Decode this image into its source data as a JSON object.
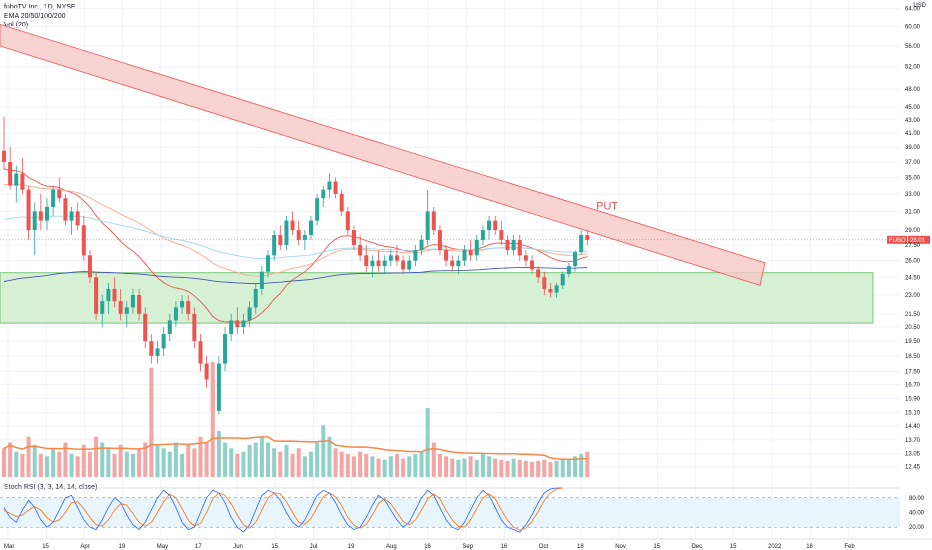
{
  "legend": {
    "symbol_line": "fuboTV Inc., 1D, NYSE",
    "ema_line": "EMA 20/50/100/200",
    "vol_line": "Vol (20)"
  },
  "currency": "USD",
  "rsi_label": "Stoch RSI (3, 3, 14, 14, close)",
  "price_tag": {
    "symbol": "FUBO",
    "value": "28.01",
    "bg": "#ef5350"
  },
  "put_label": "PUT",
  "colors": {
    "up": "#26a69a",
    "down": "#ef5350",
    "channel_fill": "#f8c8c6",
    "zone_fill": "#d6f0d4",
    "ema20": "#ef5350",
    "ema50": "#f7a98f",
    "ema100": "#9fd9e6",
    "ema200": "#4a5bb5",
    "vol_ma": "#f5894a",
    "rsi_k": "#2962ff",
    "rsi_d": "#ff6d00"
  },
  "chart_data": {
    "type": "candlestick",
    "title": "fuboTV Inc., 1D, NYSE",
    "ylabel": "USD",
    "y_scale": "log",
    "y_ticks": [
      "64.00",
      "60.00",
      "56.00",
      "52.00",
      "48.00",
      "45.00",
      "43.00",
      "41.00",
      "39.00",
      "37.00",
      "35.00",
      "33.00",
      "31.00",
      "29.00",
      "28.01",
      "27.50",
      "26.00",
      "24.50",
      "23.00",
      "21.50",
      "20.50",
      "19.50",
      "18.50",
      "17.50",
      "16.70",
      "15.90",
      "15.10",
      "14.40",
      "13.70",
      "13.05",
      "12.45"
    ],
    "x_ticks": [
      "Mar",
      "15",
      "Apr",
      "19",
      "May",
      "17",
      "Jun",
      "15",
      "Jul",
      "19",
      "Aug",
      "16",
      "Sep",
      "16",
      "Oct",
      "18",
      "Nov",
      "15",
      "Dec",
      "15",
      "2022",
      "18",
      "Feb"
    ],
    "last_price": 28.01,
    "resistance_channel": {
      "start": {
        "date": "Mar 1",
        "upper": 60.5,
        "lower": 56.0
      },
      "end": {
        "date": "Dec 15",
        "upper": 25.8,
        "lower": 23.8
      }
    },
    "support_zone": {
      "upper": 24.9,
      "lower": 20.8
    },
    "candles": [
      {
        "o": 38.5,
        "h": 43.5,
        "l": 36.0,
        "c": 37.0
      },
      {
        "o": 37.0,
        "h": 39.0,
        "l": 33.5,
        "c": 34.0
      },
      {
        "o": 34.0,
        "h": 36.5,
        "l": 32.0,
        "c": 35.5
      },
      {
        "o": 35.5,
        "h": 37.5,
        "l": 33.0,
        "c": 33.5
      },
      {
        "o": 33.5,
        "h": 34.0,
        "l": 28.0,
        "c": 29.0
      },
      {
        "o": 29.0,
        "h": 32.0,
        "l": 26.5,
        "c": 31.0
      },
      {
        "o": 31.0,
        "h": 33.0,
        "l": 29.0,
        "c": 30.0
      },
      {
        "o": 30.0,
        "h": 32.5,
        "l": 29.0,
        "c": 31.5
      },
      {
        "o": 31.5,
        "h": 34.0,
        "l": 30.5,
        "c": 33.5
      },
      {
        "o": 33.5,
        "h": 35.0,
        "l": 32.0,
        "c": 32.5
      },
      {
        "o": 32.5,
        "h": 33.0,
        "l": 29.5,
        "c": 30.0
      },
      {
        "o": 30.0,
        "h": 31.5,
        "l": 28.5,
        "c": 31.0
      },
      {
        "o": 31.0,
        "h": 32.0,
        "l": 29.0,
        "c": 29.5
      },
      {
        "o": 29.5,
        "h": 30.5,
        "l": 26.0,
        "c": 26.5
      },
      {
        "o": 26.5,
        "h": 27.0,
        "l": 24.0,
        "c": 24.5
      },
      {
        "o": 24.5,
        "h": 25.0,
        "l": 21.0,
        "c": 21.5
      },
      {
        "o": 21.5,
        "h": 23.0,
        "l": 20.5,
        "c": 22.5
      },
      {
        "o": 22.5,
        "h": 24.0,
        "l": 21.5,
        "c": 23.5
      },
      {
        "o": 23.5,
        "h": 24.5,
        "l": 22.0,
        "c": 22.5
      },
      {
        "o": 22.5,
        "h": 23.5,
        "l": 21.0,
        "c": 21.5
      },
      {
        "o": 21.5,
        "h": 22.5,
        "l": 20.5,
        "c": 22.0
      },
      {
        "o": 22.0,
        "h": 23.5,
        "l": 21.5,
        "c": 23.0
      },
      {
        "o": 23.0,
        "h": 23.5,
        "l": 21.0,
        "c": 21.5
      },
      {
        "o": 21.5,
        "h": 22.0,
        "l": 19.0,
        "c": 19.5
      },
      {
        "o": 19.5,
        "h": 20.0,
        "l": 18.0,
        "c": 18.5
      },
      {
        "o": 18.5,
        "h": 19.5,
        "l": 18.0,
        "c": 19.0
      },
      {
        "o": 19.0,
        "h": 20.5,
        "l": 18.5,
        "c": 20.0
      },
      {
        "o": 20.0,
        "h": 21.5,
        "l": 19.5,
        "c": 21.0
      },
      {
        "o": 21.0,
        "h": 22.5,
        "l": 20.5,
        "c": 22.0
      },
      {
        "o": 22.0,
        "h": 23.0,
        "l": 21.5,
        "c": 22.5
      },
      {
        "o": 22.5,
        "h": 23.0,
        "l": 21.0,
        "c": 21.5
      },
      {
        "o": 21.5,
        "h": 22.0,
        "l": 19.0,
        "c": 19.5
      },
      {
        "o": 19.5,
        "h": 20.0,
        "l": 17.5,
        "c": 18.0
      },
      {
        "o": 18.0,
        "h": 18.5,
        "l": 16.5,
        "c": 17.0
      },
      {
        "o": 17.0,
        "h": 17.5,
        "l": 14.2,
        "c": 15.2
      },
      {
        "o": 15.2,
        "h": 18.5,
        "l": 15.0,
        "c": 18.0
      },
      {
        "o": 18.0,
        "h": 20.5,
        "l": 17.5,
        "c": 20.0
      },
      {
        "o": 20.0,
        "h": 21.5,
        "l": 19.5,
        "c": 21.0
      },
      {
        "o": 21.0,
        "h": 22.0,
        "l": 20.0,
        "c": 20.5
      },
      {
        "o": 20.5,
        "h": 21.5,
        "l": 20.0,
        "c": 21.0
      },
      {
        "o": 21.0,
        "h": 22.5,
        "l": 20.5,
        "c": 22.0
      },
      {
        "o": 22.0,
        "h": 24.0,
        "l": 21.5,
        "c": 23.5
      },
      {
        "o": 23.5,
        "h": 25.5,
        "l": 23.0,
        "c": 25.0
      },
      {
        "o": 25.0,
        "h": 27.0,
        "l": 24.5,
        "c": 26.5
      },
      {
        "o": 26.5,
        "h": 29.0,
        "l": 26.0,
        "c": 28.5
      },
      {
        "o": 28.5,
        "h": 29.5,
        "l": 27.0,
        "c": 27.5
      },
      {
        "o": 27.5,
        "h": 30.5,
        "l": 27.0,
        "c": 30.0
      },
      {
        "o": 30.0,
        "h": 31.0,
        "l": 28.5,
        "c": 29.0
      },
      {
        "o": 29.0,
        "h": 30.0,
        "l": 27.5,
        "c": 28.0
      },
      {
        "o": 28.0,
        "h": 29.0,
        "l": 27.0,
        "c": 28.5
      },
      {
        "o": 28.5,
        "h": 30.5,
        "l": 28.0,
        "c": 30.0
      },
      {
        "o": 30.0,
        "h": 33.0,
        "l": 29.5,
        "c": 32.5
      },
      {
        "o": 32.5,
        "h": 34.0,
        "l": 31.5,
        "c": 33.5
      },
      {
        "o": 33.5,
        "h": 35.5,
        "l": 32.5,
        "c": 34.5
      },
      {
        "o": 34.5,
        "h": 35.0,
        "l": 32.5,
        "c": 33.0
      },
      {
        "o": 33.0,
        "h": 33.5,
        "l": 30.5,
        "c": 31.0
      },
      {
        "o": 31.0,
        "h": 31.5,
        "l": 28.5,
        "c": 29.0
      },
      {
        "o": 29.0,
        "h": 29.5,
        "l": 27.0,
        "c": 27.5
      },
      {
        "o": 27.5,
        "h": 28.5,
        "l": 26.0,
        "c": 26.5
      },
      {
        "o": 26.5,
        "h": 27.5,
        "l": 25.0,
        "c": 25.5
      },
      {
        "o": 25.5,
        "h": 26.5,
        "l": 24.5,
        "c": 26.0
      },
      {
        "o": 26.0,
        "h": 27.0,
        "l": 25.0,
        "c": 25.5
      },
      {
        "o": 25.5,
        "h": 26.5,
        "l": 24.8,
        "c": 26.0
      },
      {
        "o": 26.0,
        "h": 27.0,
        "l": 25.5,
        "c": 26.5
      },
      {
        "o": 26.5,
        "h": 27.5,
        "l": 25.5,
        "c": 26.0
      },
      {
        "o": 26.0,
        "h": 26.5,
        "l": 24.8,
        "c": 25.2
      },
      {
        "o": 25.2,
        "h": 26.5,
        "l": 25.0,
        "c": 26.0
      },
      {
        "o": 26.0,
        "h": 27.5,
        "l": 25.5,
        "c": 27.0
      },
      {
        "o": 27.0,
        "h": 28.5,
        "l": 26.5,
        "c": 28.0
      },
      {
        "o": 28.0,
        "h": 33.5,
        "l": 27.5,
        "c": 31.0
      },
      {
        "o": 31.0,
        "h": 31.5,
        "l": 28.5,
        "c": 29.0
      },
      {
        "o": 29.0,
        "h": 29.5,
        "l": 26.5,
        "c": 27.0
      },
      {
        "o": 27.0,
        "h": 27.5,
        "l": 25.5,
        "c": 26.0
      },
      {
        "o": 26.0,
        "h": 26.5,
        "l": 25.0,
        "c": 25.5
      },
      {
        "o": 25.5,
        "h": 26.5,
        "l": 24.8,
        "c": 26.0
      },
      {
        "o": 26.0,
        "h": 27.5,
        "l": 25.5,
        "c": 27.0
      },
      {
        "o": 27.0,
        "h": 28.0,
        "l": 26.0,
        "c": 26.5
      },
      {
        "o": 26.5,
        "h": 28.5,
        "l": 26.0,
        "c": 28.0
      },
      {
        "o": 28.0,
        "h": 29.5,
        "l": 27.5,
        "c": 29.0
      },
      {
        "o": 29.0,
        "h": 30.5,
        "l": 28.0,
        "c": 30.0
      },
      {
        "o": 30.0,
        "h": 30.5,
        "l": 28.5,
        "c": 29.0
      },
      {
        "o": 29.0,
        "h": 30.0,
        "l": 27.5,
        "c": 28.0
      },
      {
        "o": 28.0,
        "h": 28.5,
        "l": 26.5,
        "c": 27.0
      },
      {
        "o": 27.0,
        "h": 28.5,
        "l": 26.5,
        "c": 28.0
      },
      {
        "o": 28.0,
        "h": 28.5,
        "l": 26.0,
        "c": 26.5
      },
      {
        "o": 26.5,
        "h": 27.0,
        "l": 25.5,
        "c": 26.0
      },
      {
        "o": 26.0,
        "h": 26.5,
        "l": 24.8,
        "c": 25.2
      },
      {
        "o": 25.2,
        "h": 25.5,
        "l": 24.0,
        "c": 24.5
      },
      {
        "o": 24.5,
        "h": 25.0,
        "l": 23.0,
        "c": 23.5
      },
      {
        "o": 23.5,
        "h": 24.0,
        "l": 22.8,
        "c": 23.2
      },
      {
        "o": 23.2,
        "h": 24.0,
        "l": 22.8,
        "c": 23.8
      },
      {
        "o": 23.8,
        "h": 25.0,
        "l": 23.5,
        "c": 24.8
      },
      {
        "o": 24.8,
        "h": 25.8,
        "l": 24.5,
        "c": 25.5
      },
      {
        "o": 25.5,
        "h": 27.0,
        "l": 25.0,
        "c": 26.8
      },
      {
        "o": 26.8,
        "h": 29.0,
        "l": 26.5,
        "c": 28.5
      },
      {
        "o": 28.5,
        "h": 29.0,
        "l": 27.5,
        "c": 28.01
      }
    ],
    "volume": [
      0.25,
      0.3,
      0.22,
      0.2,
      0.35,
      0.28,
      0.2,
      0.18,
      0.25,
      0.22,
      0.3,
      0.2,
      0.18,
      0.28,
      0.22,
      0.35,
      0.3,
      0.25,
      0.2,
      0.28,
      0.22,
      0.2,
      0.25,
      0.3,
      0.95,
      0.28,
      0.25,
      0.22,
      0.3,
      0.2,
      0.28,
      0.25,
      0.35,
      0.3,
      1.0,
      0.4,
      0.3,
      0.25,
      0.2,
      0.22,
      0.28,
      0.3,
      0.35,
      0.3,
      0.25,
      0.22,
      0.28,
      0.2,
      0.25,
      0.18,
      0.22,
      0.3,
      0.45,
      0.35,
      0.25,
      0.22,
      0.2,
      0.18,
      0.22,
      0.2,
      0.18,
      0.16,
      0.15,
      0.18,
      0.2,
      0.16,
      0.18,
      0.2,
      0.22,
      0.6,
      0.3,
      0.2,
      0.18,
      0.16,
      0.15,
      0.16,
      0.18,
      0.15,
      0.2,
      0.18,
      0.16,
      0.15,
      0.14,
      0.16,
      0.15,
      0.14,
      0.13,
      0.14,
      0.15,
      0.13,
      0.14,
      0.15,
      0.16,
      0.18,
      0.2,
      0.22
    ],
    "stoch_rsi": {
      "levels": [
        80,
        20
      ],
      "k": [
        60,
        40,
        30,
        55,
        75,
        60,
        35,
        20,
        30,
        55,
        80,
        85,
        60,
        35,
        20,
        15,
        35,
        60,
        80,
        70,
        45,
        25,
        15,
        30,
        55,
        80,
        95,
        85,
        60,
        30,
        15,
        20,
        50,
        80,
        95,
        90,
        70,
        40,
        20,
        10,
        25,
        55,
        85,
        95,
        90,
        75,
        50,
        30,
        20,
        35,
        60,
        85,
        95,
        90,
        70,
        45,
        25,
        15,
        20,
        40,
        65,
        85,
        75,
        55,
        35,
        20,
        30,
        55,
        80,
        95,
        85,
        60,
        35,
        20,
        15,
        30,
        55,
        80,
        95,
        85,
        60,
        35,
        20,
        15,
        10,
        25,
        45,
        70,
        90,
        98,
        100,
        100
      ],
      "d": [
        55,
        48,
        42,
        45,
        55,
        62,
        55,
        40,
        30,
        35,
        50,
        70,
        72,
        58,
        40,
        25,
        22,
        35,
        55,
        68,
        65,
        48,
        30,
        22,
        30,
        50,
        72,
        88,
        80,
        58,
        35,
        22,
        28,
        50,
        78,
        90,
        85,
        68,
        45,
        25,
        18,
        30,
        55,
        80,
        90,
        88,
        72,
        50,
        30,
        26,
        38,
        60,
        82,
        90,
        82,
        64,
        40,
        24,
        18,
        26,
        45,
        68,
        78,
        68,
        50,
        32,
        25,
        35,
        55,
        78,
        88,
        78,
        55,
        35,
        22,
        20,
        35,
        58,
        80,
        88,
        78,
        55,
        34,
        20,
        14,
        18,
        32,
        52,
        75,
        90,
        98,
        100
      ]
    }
  }
}
